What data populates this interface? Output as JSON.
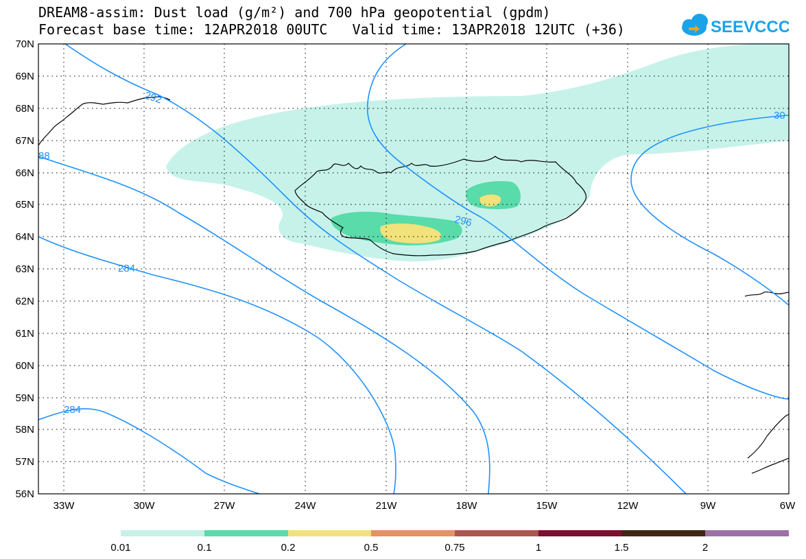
{
  "header": {
    "title_line1": "DREAM8-assim: Dust load (g/m²) and 700 hPa geopotential (gpdm)",
    "title_line2": "Forecast base time: 12APR2018 00UTC   Valid time: 13APR2018 12UTC (+36)",
    "logo_text": "SEEVCCC",
    "logo_icon": "cloud-icon"
  },
  "map": {
    "region": "Iceland / North Atlantic",
    "lat_labels": [
      "70N",
      "69N",
      "68N",
      "67N",
      "66N",
      "65N",
      "64N",
      "63N",
      "62N",
      "61N",
      "60N",
      "59N",
      "58N",
      "57N",
      "56N"
    ],
    "lon_labels": [
      "33W",
      "30W",
      "27W",
      "24W",
      "21W",
      "18W",
      "15W",
      "12W",
      "9W",
      "6W"
    ],
    "lat_range": [
      56,
      70
    ],
    "lon_range": [
      -34.5,
      -6
    ],
    "grid": "dotted",
    "contour_color": "#1e90ff",
    "contour_labels": [
      "292",
      "30",
      "88",
      "296",
      "284",
      "284"
    ]
  },
  "colorbar": {
    "colors": [
      "#c6f2ea",
      "#59dbaa",
      "#f1e27b",
      "#e69166",
      "#ad5550",
      "#7e0d2f",
      "#3e2713",
      "#9c72a6"
    ],
    "labels": [
      "0.01",
      "0.1",
      "0.2",
      "0.5",
      "0.75",
      "1",
      "1.5",
      "2"
    ]
  }
}
